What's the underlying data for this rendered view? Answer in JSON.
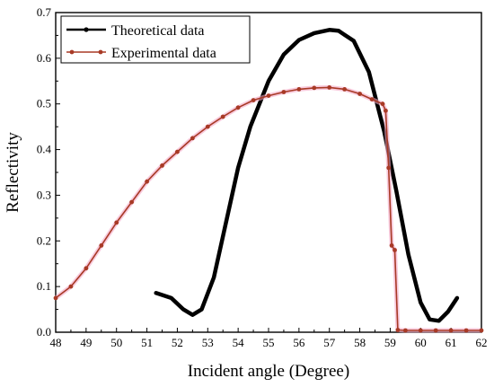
{
  "chart_data": {
    "type": "line",
    "title": "",
    "xlabel": "Incident angle (Degree)",
    "ylabel": "Reflectivity",
    "xlim": [
      48,
      62
    ],
    "ylim": [
      0.0,
      0.7
    ],
    "xticks": [
      "48",
      "49",
      "50",
      "51",
      "52",
      "53",
      "54",
      "55",
      "56",
      "57",
      "58",
      "59",
      "60",
      "61",
      "62"
    ],
    "yticks": [
      "0.0",
      "0.1",
      "0.2",
      "0.3",
      "0.4",
      "0.5",
      "0.6",
      "0.7"
    ],
    "grid": false,
    "legend": "top-left",
    "series": [
      {
        "name": "Theoretical data",
        "color": "#000000",
        "style": "line",
        "x": [
          51.3,
          51.8,
          52.2,
          52.5,
          52.8,
          53.2,
          53.6,
          54.0,
          54.4,
          55.0,
          55.5,
          56.0,
          56.5,
          57.0,
          57.3,
          57.8,
          58.3,
          58.8,
          59.2,
          59.6,
          60.0,
          60.3,
          60.6,
          60.9,
          61.2
        ],
        "y": [
          0.086,
          0.075,
          0.05,
          0.038,
          0.05,
          0.12,
          0.24,
          0.36,
          0.45,
          0.55,
          0.608,
          0.64,
          0.655,
          0.662,
          0.66,
          0.638,
          0.57,
          0.44,
          0.31,
          0.17,
          0.065,
          0.028,
          0.025,
          0.045,
          0.075
        ]
      },
      {
        "name": "Experimental data",
        "color": "#a83a26",
        "style": "line-markers",
        "x": [
          48.0,
          48.5,
          49.0,
          49.5,
          50.0,
          50.5,
          51.0,
          51.5,
          52.0,
          52.5,
          53.0,
          53.5,
          54.0,
          54.5,
          55.0,
          55.5,
          56.0,
          56.5,
          57.0,
          57.5,
          58.0,
          58.4,
          58.75,
          58.85,
          58.95,
          59.05,
          59.15,
          59.25,
          59.5,
          60.0,
          60.5,
          61.0,
          61.5,
          62.0
        ],
        "y": [
          0.075,
          0.1,
          0.14,
          0.19,
          0.24,
          0.285,
          0.33,
          0.365,
          0.395,
          0.425,
          0.45,
          0.472,
          0.492,
          0.508,
          0.518,
          0.526,
          0.532,
          0.535,
          0.536,
          0.532,
          0.522,
          0.51,
          0.5,
          0.485,
          0.36,
          0.19,
          0.18,
          0.005,
          0.004,
          0.004,
          0.004,
          0.004,
          0.004,
          0.004
        ]
      }
    ]
  }
}
